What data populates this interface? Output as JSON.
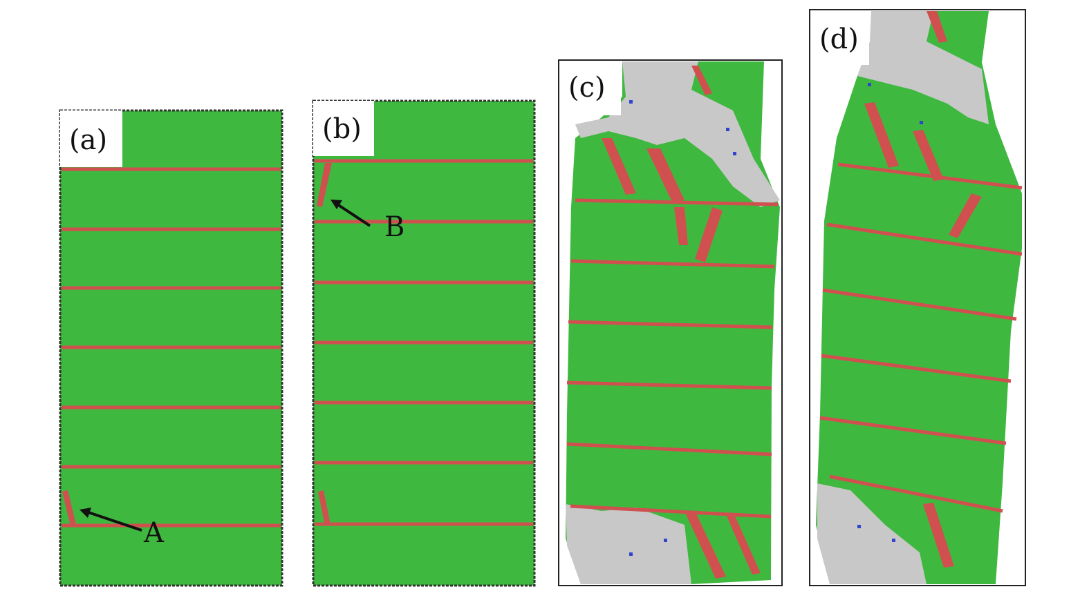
{
  "panels": [
    {
      "label": "(a)",
      "annotation": "A"
    },
    {
      "label": "(b)",
      "annotation": "B"
    },
    {
      "label": "(c)"
    },
    {
      "label": "(d)"
    }
  ],
  "colors": {
    "fcc_atoms": "#3fb83f",
    "stacking_fault_atoms": "#d05050",
    "disordered_atoms": "#c8c8c8",
    "other_atoms": "#3344cc",
    "frame": "#222222"
  }
}
